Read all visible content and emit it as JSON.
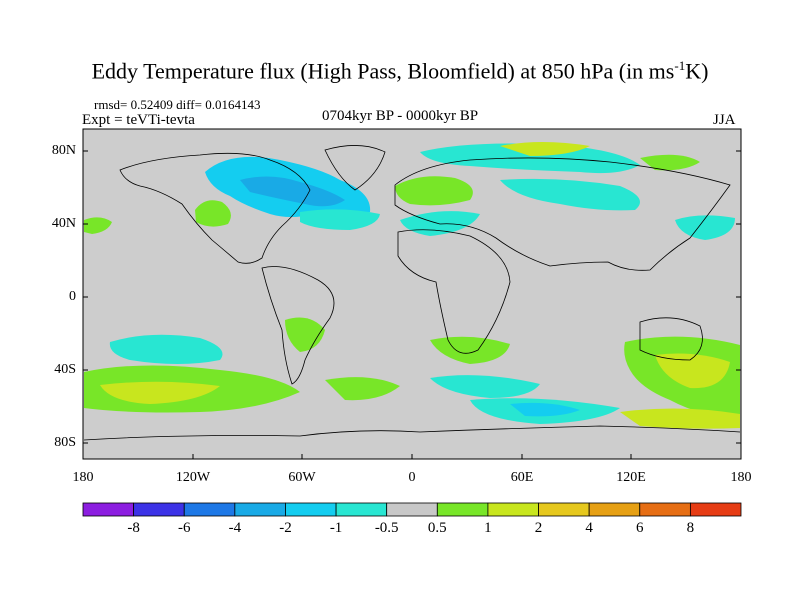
{
  "title": "Eddy Temperature flux (High Pass, Bloomfield) at 850 hPa (in ms",
  "title_sup": "-1",
  "title_end": "K)",
  "stats": "rmsd= 0.52409 diff= 0.0164143",
  "expt": "Expt = teVTi-tevta",
  "period": "0704kyr BP - 0000kyr BP",
  "season": "JJA",
  "map": {
    "ocean_color": "#cdcdcd",
    "lat_ticks": [
      "80N",
      "40N",
      "0",
      "40S",
      "80S"
    ],
    "lon_ticks": [
      "180",
      "120W",
      "60W",
      "0",
      "60E",
      "120E",
      "180"
    ]
  },
  "colorbar": {
    "colors": [
      "#8c1ee0",
      "#3c32e6",
      "#1e78e6",
      "#19aae6",
      "#14cdf0",
      "#28e6d2",
      "#c8c8c8",
      "#78e628",
      "#c8e61e",
      "#e6c81e",
      "#e6a014",
      "#e66e14",
      "#e63c14"
    ],
    "labels": [
      "-8",
      "-6",
      "-4",
      "-2",
      "-1",
      "-0.5",
      "0.5",
      "1",
      "2",
      "4",
      "6",
      "8"
    ]
  }
}
